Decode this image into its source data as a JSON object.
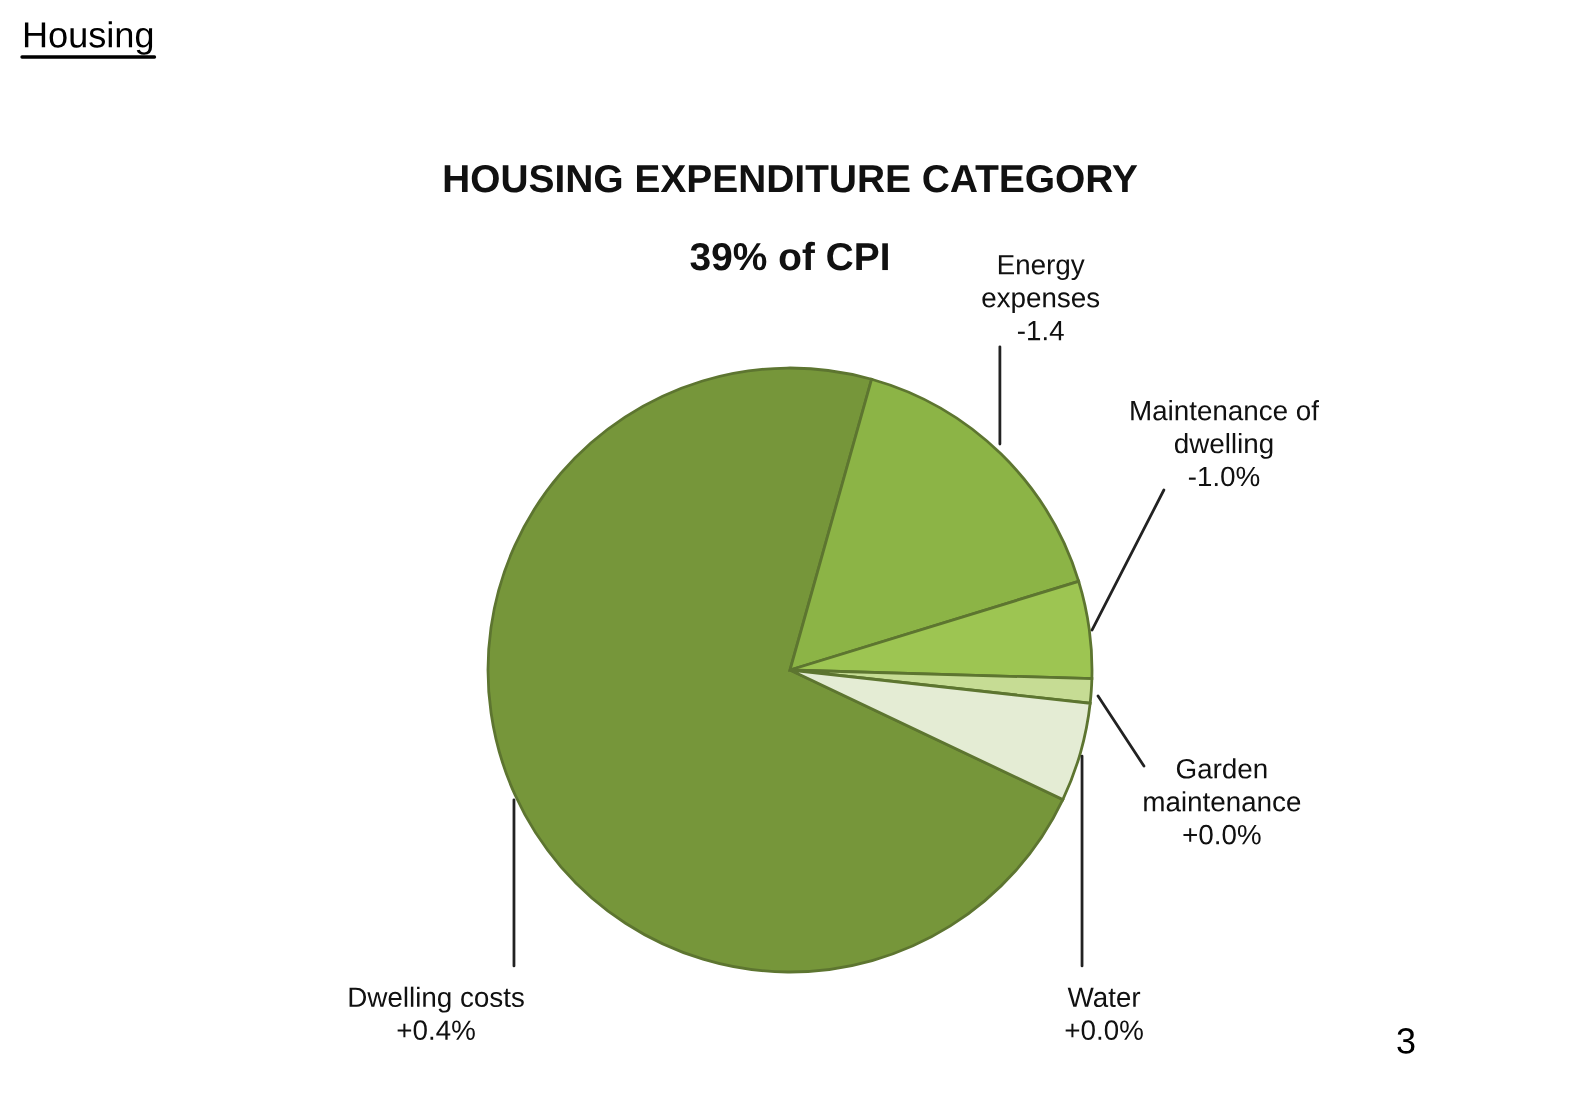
{
  "chart_data": {
    "type": "pie",
    "title": "HOUSING EXPENDITURE CATEGORY",
    "subtitle": "39% of CPI",
    "categories": [
      "Dwelling costs\n+0.4%",
      "Energy\nexpenses\n-1.4",
      "Maintenance of\ndwelling\n-1.0%",
      "Garden\nmaintenance\n+0.0%",
      "Water\n+0.0%"
    ],
    "values": [
      72.3,
      15.9,
      5.2,
      1.3,
      5.3
    ],
    "colors": [
      "#76963a",
      "#8cb446",
      "#9dc552",
      "#c6dc94",
      "#e4ecd4"
    ],
    "annotations": [
      "Housing",
      "3"
    ]
  }
}
